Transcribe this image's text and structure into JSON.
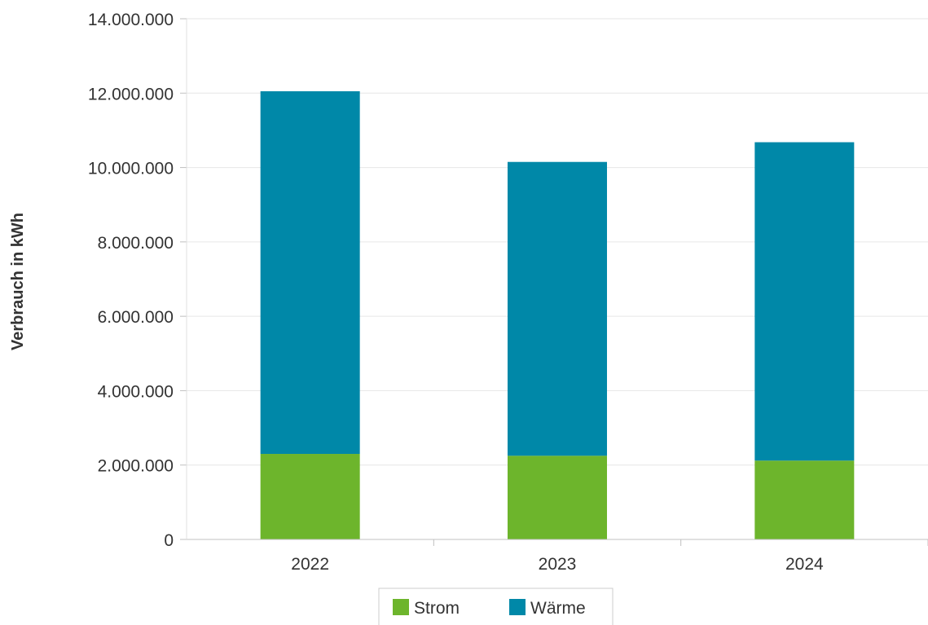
{
  "chart_data": {
    "type": "bar",
    "stacked": true,
    "title": "",
    "xlabel": "",
    "ylabel": "Verbrauch in kWh",
    "categories": [
      "2022",
      "2023",
      "2024"
    ],
    "ylim": [
      0,
      14000000
    ],
    "yticks": [
      "0",
      "2.000.000",
      "4.000.000",
      "6.000.000",
      "8.000.000",
      "10.000.000",
      "12.000.000",
      "14.000.000"
    ],
    "grid": true,
    "legend_position": "bottom",
    "series": [
      {
        "name": "Strom",
        "color": "#6db52c",
        "values": [
          2300000,
          2250000,
          2120000
        ]
      },
      {
        "name": "Wärme",
        "color": "#0088a8",
        "values": [
          9750000,
          7900000,
          8560000
        ]
      }
    ]
  }
}
